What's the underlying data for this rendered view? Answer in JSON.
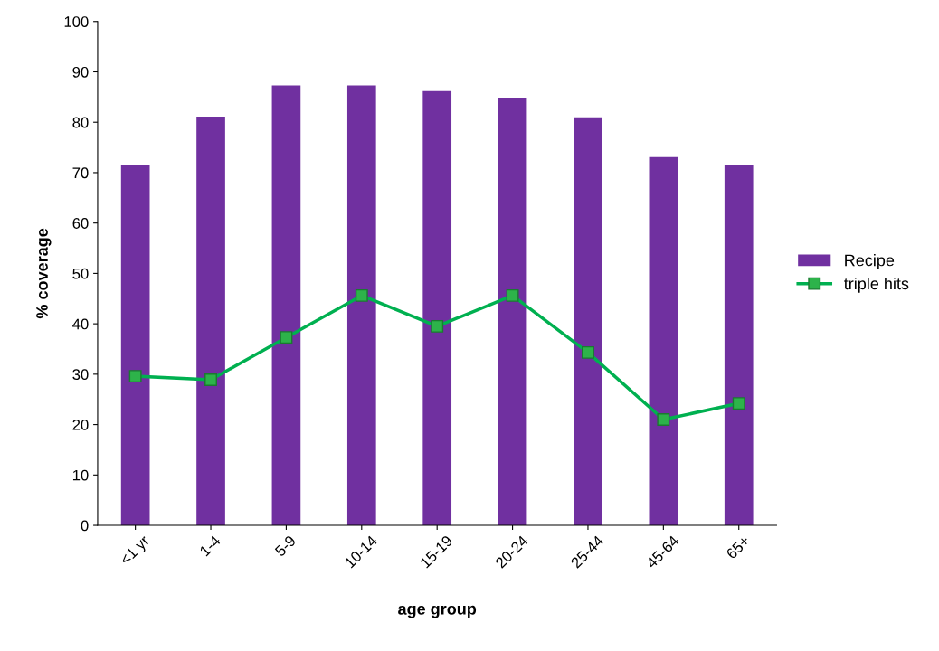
{
  "chart_data": {
    "type": "bar",
    "xlabel": "age group",
    "ylabel": "% coverage",
    "categories": [
      "<1 yr",
      "1-4",
      "5-9",
      "10-14",
      "15-19",
      "20-24",
      "25-44",
      "45-64",
      "65+"
    ],
    "series": [
      {
        "name": "Recipe",
        "color": "#7030a0",
        "values": [
          71.5,
          81.1,
          87.3,
          87.3,
          86.2,
          84.9,
          81.0,
          73.1,
          71.6
        ]
      },
      {
        "name": "triple hits",
        "type": "line",
        "color": "#00b050",
        "values": [
          29.6,
          28.9,
          37.3,
          45.6,
          39.5,
          45.6,
          34.3,
          21.0,
          24.2
        ]
      }
    ],
    "ylim": [
      0,
      100
    ],
    "yticks": [
      0,
      10,
      20,
      30,
      40,
      50,
      60,
      70,
      80,
      90,
      100
    ],
    "grid": false,
    "legend": "right",
    "marker": "square",
    "line_style": "solid"
  }
}
